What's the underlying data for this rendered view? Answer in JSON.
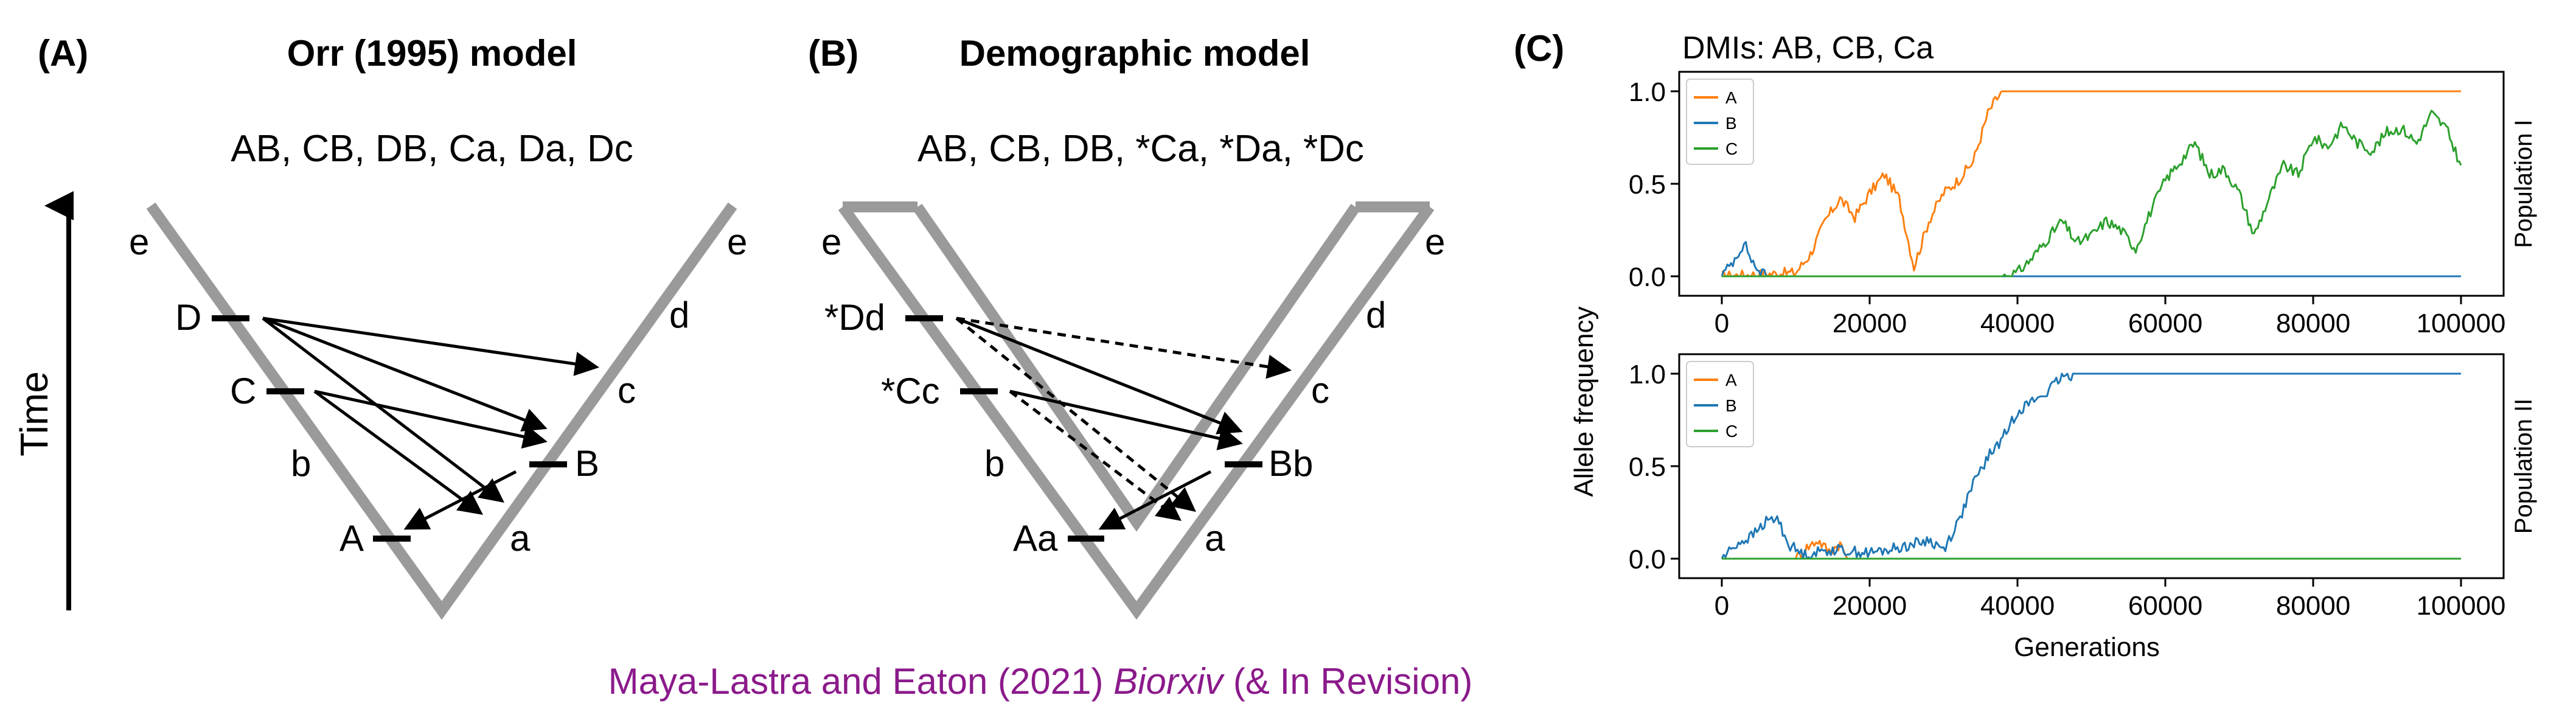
{
  "panelA": {
    "label": "(A)",
    "title": "Orr (1995) model",
    "dmis": "AB, CB, DB, Ca, Da, Dc",
    "time_label": "Time",
    "left_lineage": {
      "e": "e",
      "D": "D",
      "C": "C",
      "b": "b",
      "A": "A"
    },
    "right_lineage": {
      "e": "e",
      "d": "d",
      "c": "c",
      "B": "B",
      "a": "a"
    }
  },
  "panelB": {
    "label": "(B)",
    "title": "Demographic model",
    "dmis": "AB, CB, DB, *Ca, *Da, *Dc",
    "left_lineage": {
      "e": "e",
      "Dd": "*Dd",
      "Cc": "*Cc",
      "b": "b",
      "Aa": "Aa"
    },
    "right_lineage": {
      "e": "e",
      "d": "d",
      "c": "c",
      "Bb": "Bb",
      "a": "a"
    }
  },
  "panelC": {
    "label": "(C)",
    "title": "DMIs: AB, CB, Ca",
    "ylabel": "Allele frequency",
    "xlabel": "Generations",
    "legend": {
      "A": "A",
      "B": "B",
      "C": "C"
    },
    "colors": {
      "A": "#ff7f0e",
      "B": "#1f77b4",
      "C": "#2ca02c"
    }
  },
  "chart_data": [
    {
      "type": "line",
      "facet_label": "Population I",
      "xlim": [
        0,
        100000
      ],
      "ylim": [
        0,
        1
      ],
      "xticks": [
        "0",
        "20000",
        "40000",
        "60000",
        "80000",
        "100000"
      ],
      "yticks": [
        "0.0",
        "0.5",
        "1.0"
      ],
      "legend_position": "top-left",
      "series": [
        {
          "name": "A",
          "color": "#ff7f0e",
          "points": [
            [
              0,
              0
            ],
            [
              10000,
              0.02
            ],
            [
              12000,
              0.12
            ],
            [
              14000,
              0.3
            ],
            [
              16000,
              0.42
            ],
            [
              18000,
              0.32
            ],
            [
              20000,
              0.45
            ],
            [
              22000,
              0.55
            ],
            [
              24000,
              0.42
            ],
            [
              26000,
              0.05
            ],
            [
              28000,
              0.3
            ],
            [
              30000,
              0.45
            ],
            [
              32000,
              0.52
            ],
            [
              34000,
              0.62
            ],
            [
              36000,
              0.88
            ],
            [
              37000,
              0.95
            ],
            [
              38000,
              1.0
            ],
            [
              100000,
              1.0
            ]
          ]
        },
        {
          "name": "B",
          "color": "#1f77b4",
          "points": [
            [
              0,
              0
            ],
            [
              1500,
              0.08
            ],
            [
              3000,
              0.18
            ],
            [
              4500,
              0.05
            ],
            [
              6000,
              0
            ],
            [
              100000,
              0
            ]
          ]
        },
        {
          "name": "C",
          "color": "#2ca02c",
          "points": [
            [
              0,
              0
            ],
            [
              38000,
              0
            ],
            [
              40000,
              0.02
            ],
            [
              42000,
              0.1
            ],
            [
              44000,
              0.2
            ],
            [
              46000,
              0.3
            ],
            [
              48000,
              0.18
            ],
            [
              50000,
              0.22
            ],
            [
              52000,
              0.3
            ],
            [
              54000,
              0.25
            ],
            [
              56000,
              0.15
            ],
            [
              58000,
              0.35
            ],
            [
              60000,
              0.52
            ],
            [
              62000,
              0.62
            ],
            [
              64000,
              0.72
            ],
            [
              66000,
              0.55
            ],
            [
              68000,
              0.58
            ],
            [
              70000,
              0.45
            ],
            [
              72000,
              0.22
            ],
            [
              74000,
              0.42
            ],
            [
              76000,
              0.6
            ],
            [
              78000,
              0.55
            ],
            [
              80000,
              0.75
            ],
            [
              82000,
              0.7
            ],
            [
              84000,
              0.82
            ],
            [
              86000,
              0.72
            ],
            [
              88000,
              0.68
            ],
            [
              90000,
              0.78
            ],
            [
              92000,
              0.8
            ],
            [
              94000,
              0.72
            ],
            [
              96000,
              0.88
            ],
            [
              98000,
              0.8
            ],
            [
              100000,
              0.6
            ]
          ]
        }
      ]
    },
    {
      "type": "line",
      "facet_label": "Population II",
      "xlim": [
        0,
        100000
      ],
      "ylim": [
        0,
        1
      ],
      "xticks": [
        "0",
        "20000",
        "40000",
        "60000",
        "80000",
        "100000"
      ],
      "yticks": [
        "0.0",
        "0.5",
        "1.0"
      ],
      "legend_position": "top-left",
      "series": [
        {
          "name": "A",
          "color": "#ff7f0e",
          "points": [
            [
              0,
              0
            ],
            [
              10000,
              0
            ],
            [
              11500,
              0.06
            ],
            [
              13000,
              0.1
            ],
            [
              14500,
              0.04
            ],
            [
              16000,
              0.08
            ],
            [
              17000,
              0
            ],
            [
              100000,
              0
            ]
          ]
        },
        {
          "name": "B",
          "color": "#1f77b4",
          "points": [
            [
              0,
              0
            ],
            [
              2000,
              0.08
            ],
            [
              4000,
              0.12
            ],
            [
              6000,
              0.2
            ],
            [
              7500,
              0.22
            ],
            [
              9000,
              0.08
            ],
            [
              11000,
              0.02
            ],
            [
              15000,
              0.05
            ],
            [
              20000,
              0.03
            ],
            [
              24000,
              0.06
            ],
            [
              28000,
              0.1
            ],
            [
              30000,
              0.05
            ],
            [
              32000,
              0.2
            ],
            [
              34000,
              0.4
            ],
            [
              36000,
              0.55
            ],
            [
              38000,
              0.65
            ],
            [
              40000,
              0.8
            ],
            [
              42000,
              0.85
            ],
            [
              44000,
              0.9
            ],
            [
              46000,
              0.98
            ],
            [
              48000,
              1.0
            ],
            [
              100000,
              1.0
            ]
          ]
        },
        {
          "name": "C",
          "color": "#2ca02c",
          "points": [
            [
              0,
              0
            ],
            [
              100000,
              0
            ]
          ]
        }
      ]
    }
  ],
  "credit": {
    "authors": "Maya-Lastra and Eaton (2021)",
    "journal": "Biorxiv",
    "suffix": "(& In Revision)"
  }
}
